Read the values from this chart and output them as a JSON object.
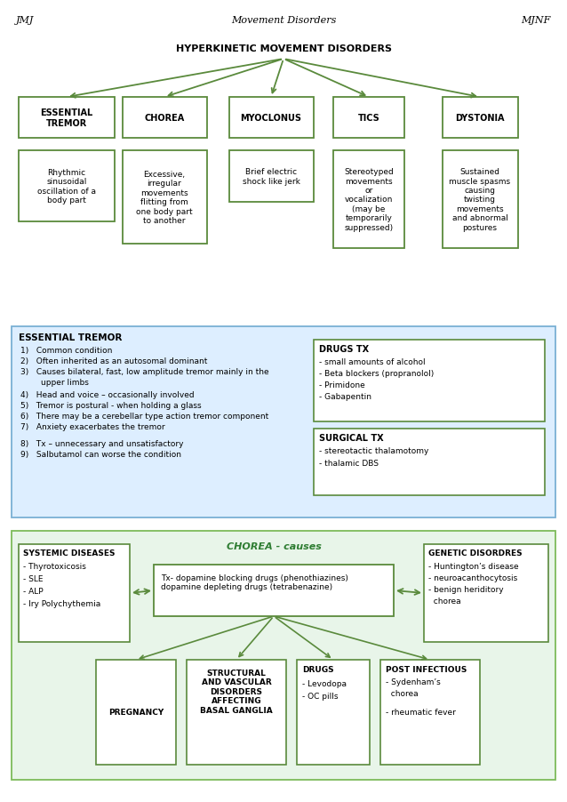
{
  "header_left": "JMJ",
  "header_center": "Movement Disorders",
  "header_right": "MJNF",
  "s1_title": "HYPERKINETIC MOVEMENT DISORDERS",
  "nodes": [
    "ESSENTIAL\nTREMOR",
    "CHOREA",
    "MYOCLONUS",
    "TICS",
    "DYSTONIA"
  ],
  "node_descs": [
    "Rhythmic\nsinusoidal\noscillation of a\nbody part",
    "Excessive,\nirregular\nmovements\nflitting from\none body part\nto another",
    "Brief electric\nshock like jerk",
    "Stereotyped\nmovements\nor\nvocalization\n(may be\ntemporarily\nsuppressed)",
    "Sustained\nmuscle spasms\ncausing\ntwisting\nmovements\nand abnormal\npostures"
  ],
  "green": "#5a8a3c",
  "light_blue": "#ddeeff",
  "light_green": "#e8f5e9",
  "s2_title": "ESSENTIAL TREMOR",
  "s2_items": [
    "1)   Common condition",
    "2)   Often inherited as an autosomal dominant",
    "3)   Causes bilateral, fast, low amplitude tremor mainly in the\n        upper limbs",
    "4)   Head and voice – occasionally involved",
    "5)   Tremor is postural - when holding a glass",
    "6)   There may be a cerebellar type action tremor component",
    "7)   Anxiety exacerbates the tremor",
    "",
    "8)   Tx – unnecessary and unsatisfactory",
    "9)   Salbutamol can worse the condition"
  ],
  "drugs_tx_title": "DRUGS TX",
  "drugs_tx_items": [
    "- small amounts of alcohol",
    "- Beta blockers (propranolol)",
    "- Primidone",
    "- Gabapentin"
  ],
  "surg_tx_title": "SURGICAL TX",
  "surg_tx_items": [
    "- stereotactic thalamotomy",
    "- thalamic DBS"
  ],
  "systemic_title": "SYSTEMIC DISEASES",
  "systemic_items": [
    "- Thyrotoxicosis",
    "- SLE",
    "- ALP",
    "- lry Polychythemia"
  ],
  "chorea_title": "CHOREA - causes",
  "chorea_body": "Tx- dopamine blocking drugs (phenothiazines)\ndopamine depleting drugs (tetrabenazine)",
  "genetic_title": "GENETIC DISORDRES",
  "genetic_items": [
    "- Huntington’s disease",
    "- neuroacanthocytosis",
    "- benign heriditory\n  chorea"
  ],
  "pregnancy_label": "PREGNANCY",
  "structural_label": "STRUCTURAL\nAND VASCULAR\nDISORDERS\nAFFECTING\nBASAL GANGLIA",
  "drugs_label": "DRUGS\n\n- Levodopa\n- OC pills",
  "post_inf_title": "POST INFECTIOUS",
  "post_inf_items": [
    "- Sydenham’s\n  chorea",
    "",
    "- rheumatic fever"
  ]
}
